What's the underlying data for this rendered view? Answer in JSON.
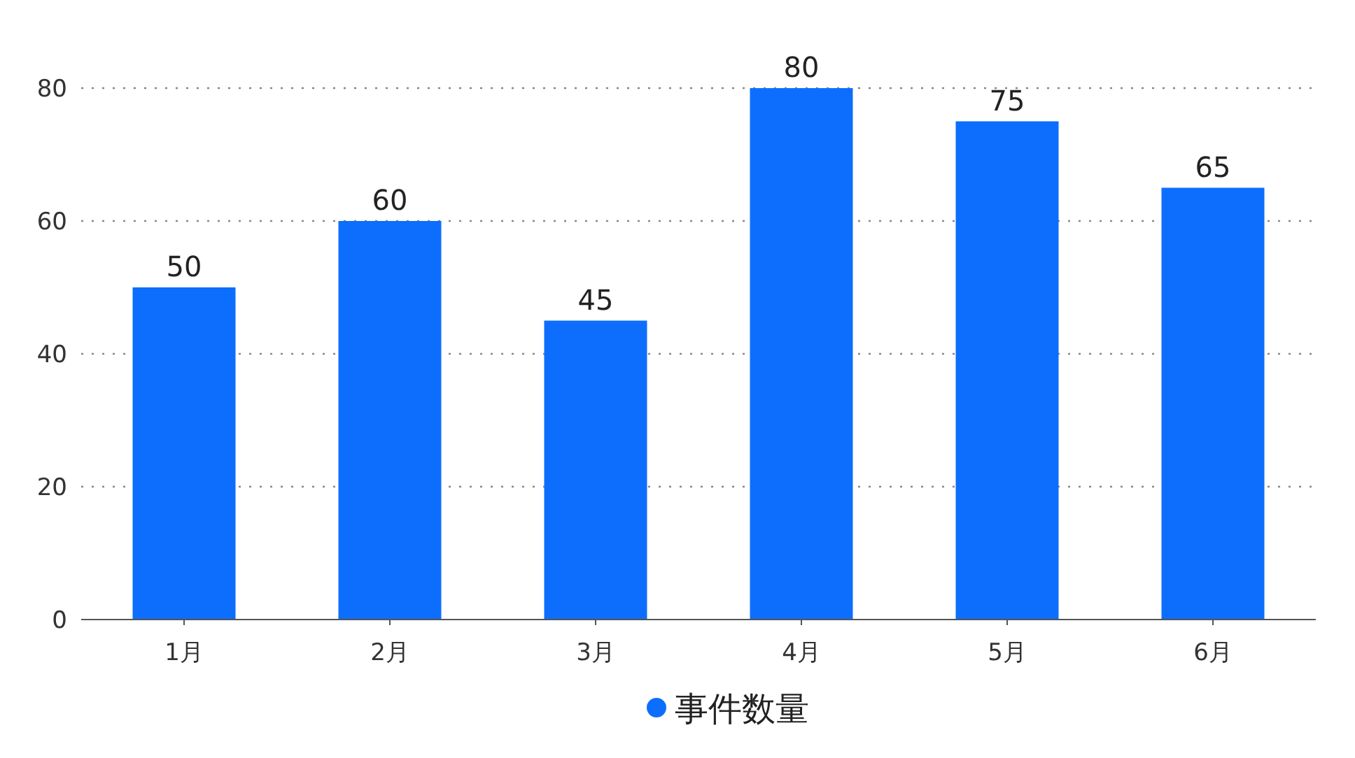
{
  "chart_data": {
    "type": "bar",
    "categories": [
      "1月",
      "2月",
      "3月",
      "4月",
      "5月",
      "6月"
    ],
    "series": [
      {
        "name": "事件数量",
        "color": "#0d6efd",
        "values": [
          50,
          60,
          45,
          80,
          75,
          65
        ]
      }
    ],
    "ylim": [
      0,
      80
    ],
    "yticks": [
      0,
      20,
      40,
      60,
      80
    ],
    "grid": "y",
    "legend": "bottom",
    "data_labels": true
  }
}
